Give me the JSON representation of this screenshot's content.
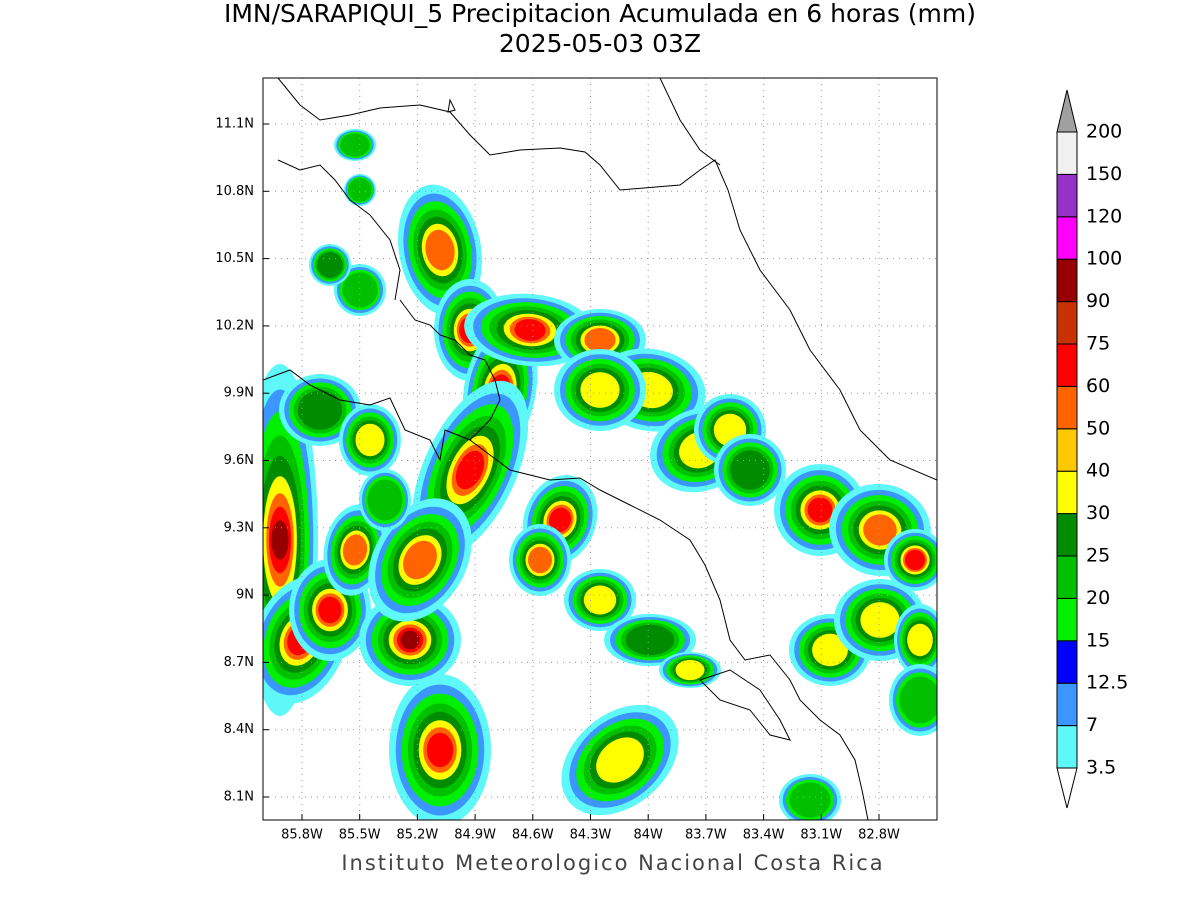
{
  "title": "IMN/SARAPIQUI_5 Precipitacion Acumulada en 6 horas (mm)",
  "subtitle": "2025-05-03 03Z",
  "map": {
    "lat_labels": [
      "11.1N",
      "10.8N",
      "10.5N",
      "10.2N",
      "9.9N",
      "9.6N",
      "9.3N",
      "9N",
      "8.7N",
      "8.4N",
      "8.1N"
    ],
    "lon_labels": [
      "85.8W",
      "85.5W",
      "85.2W",
      "84.9W",
      "84.6W",
      "84.3W",
      "84W",
      "83.7W",
      "83.4W",
      "83.1W",
      "82.8W"
    ]
  },
  "colorbar": {
    "levels": [
      3.5,
      7,
      12.5,
      15,
      20,
      25,
      30,
      40,
      50,
      60,
      75,
      90,
      100,
      120,
      150,
      200
    ],
    "colors": [
      "#5ff8f8",
      "#3c96ff",
      "#0000ff",
      "#00f000",
      "#00c000",
      "#008c00",
      "#ffff00",
      "#ffc800",
      "#ff6400",
      "#ff0000",
      "#c83200",
      "#960000",
      "#ff00ff",
      "#9632c8",
      "#f0f0f0"
    ],
    "under_color": "#ffffff",
    "over_color": "#a0a0a0"
  },
  "footer": "Instituto Meteorologico Nacional Costa Rica"
}
